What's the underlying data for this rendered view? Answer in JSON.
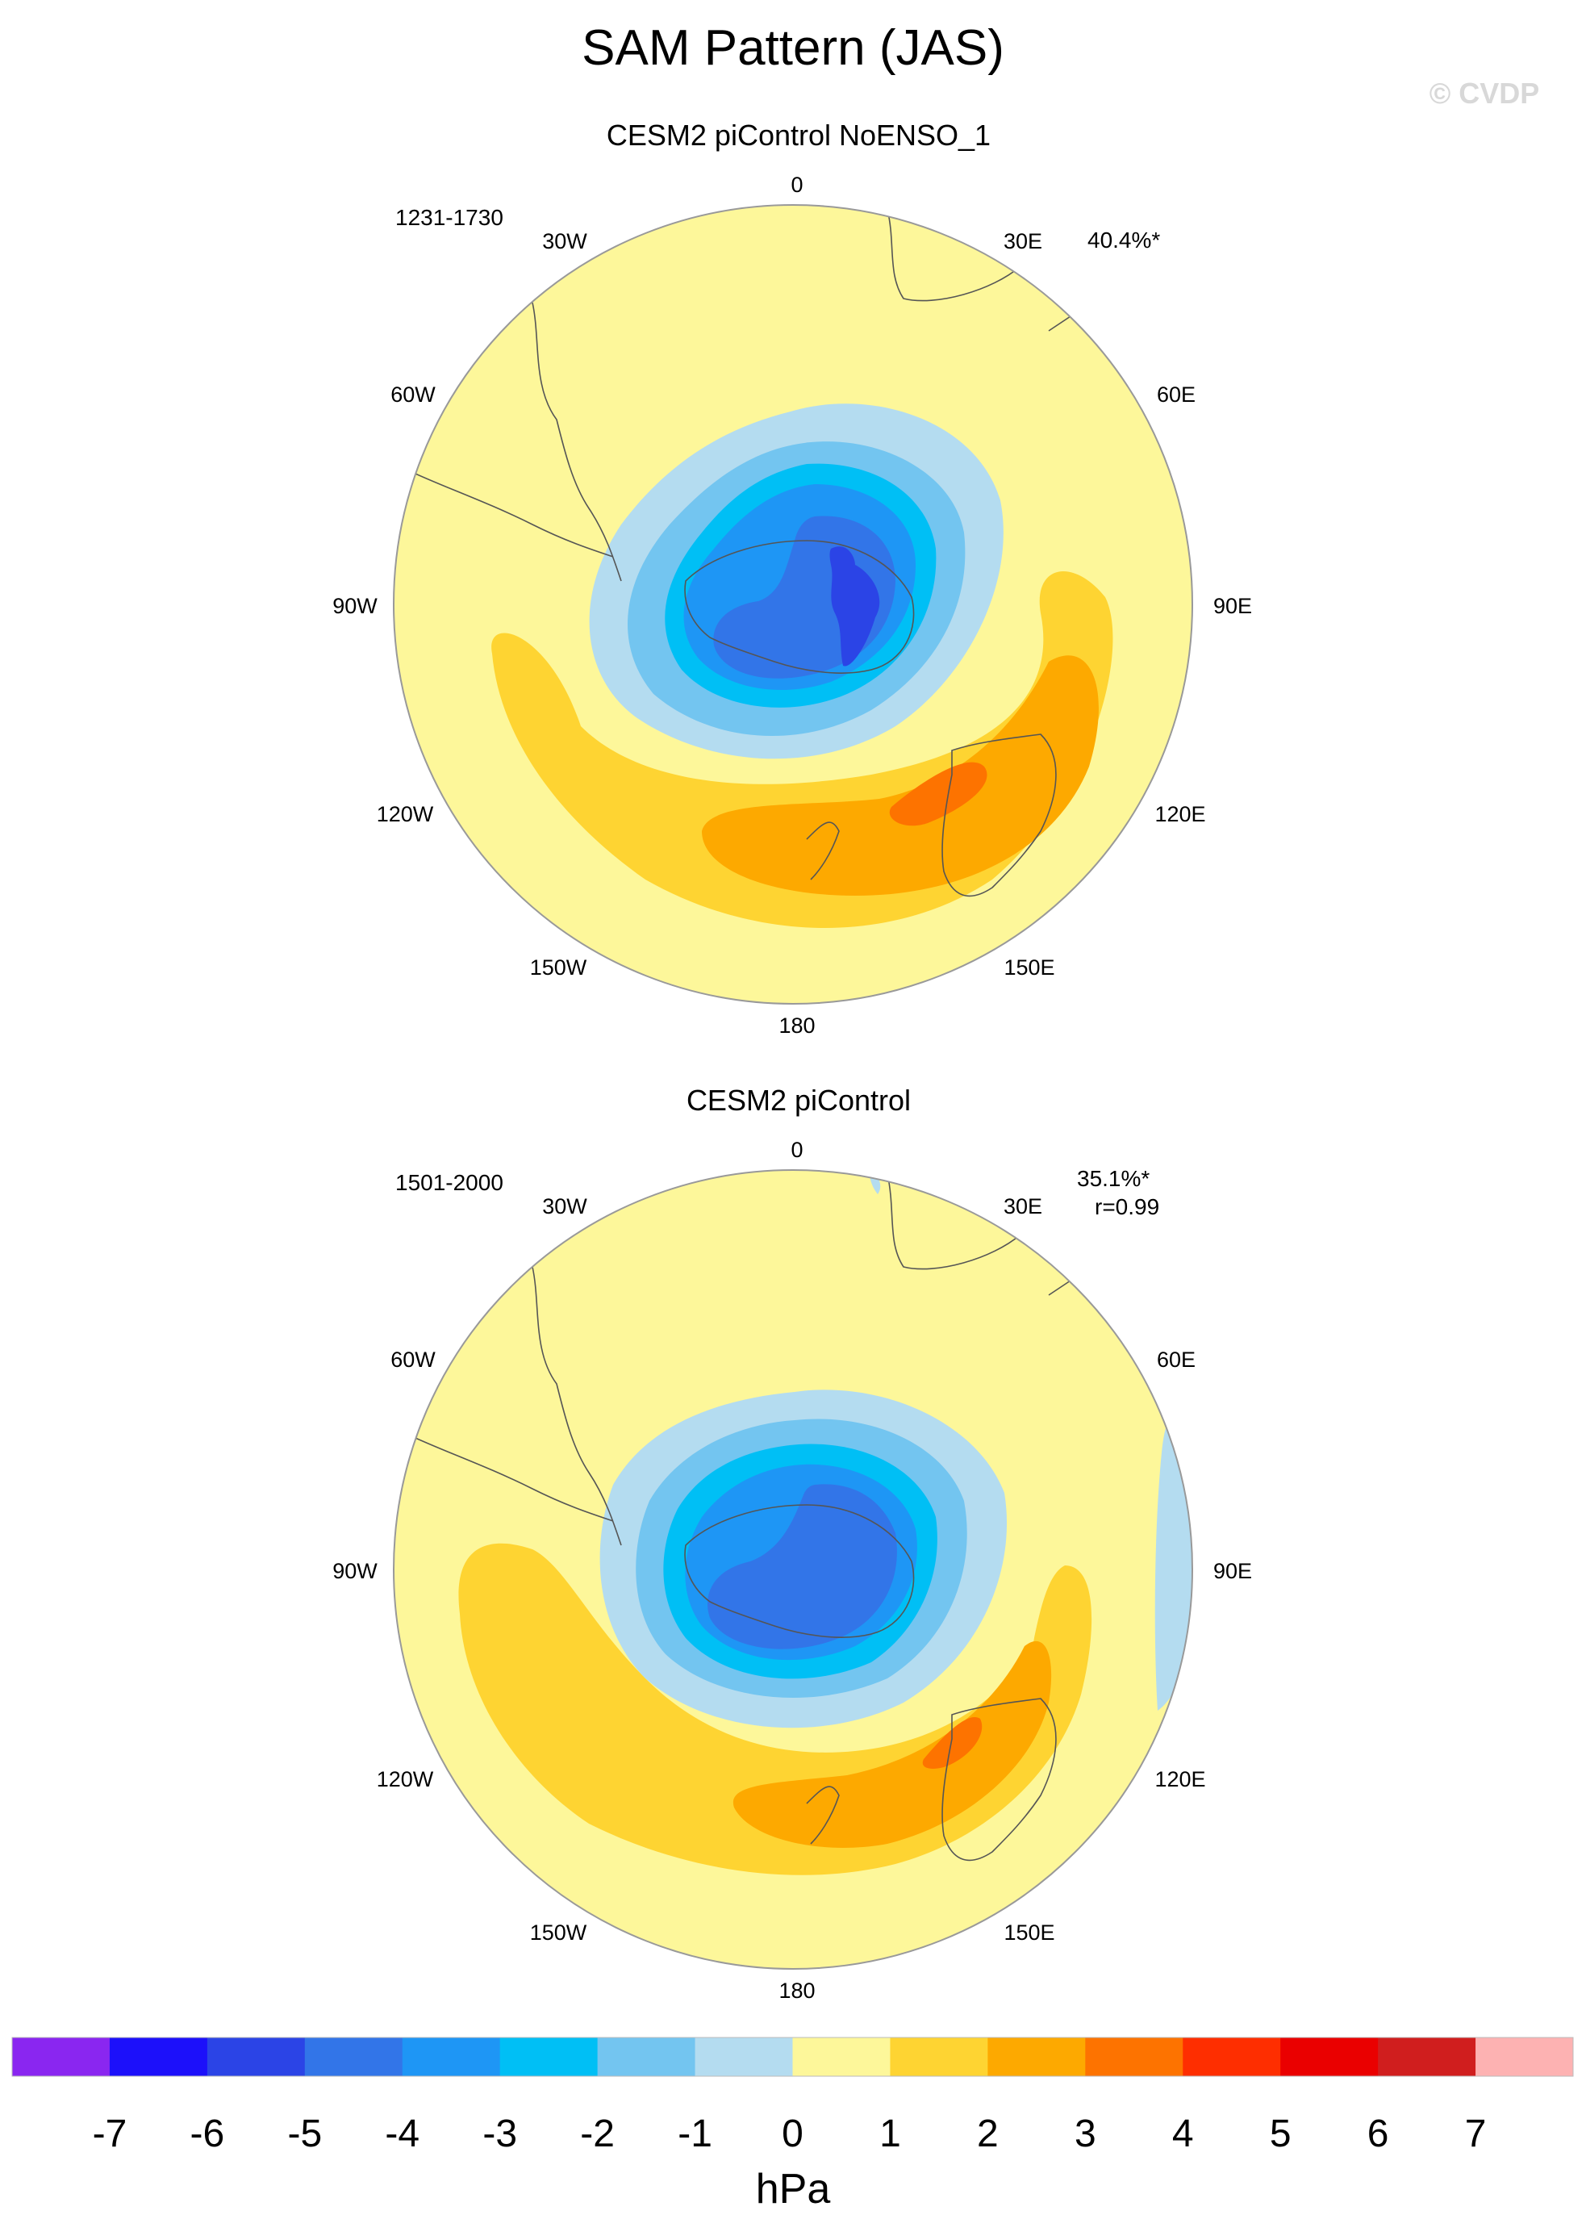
{
  "figure": {
    "title": "SAM Pattern (JAS)",
    "watermark": "© CVDP"
  },
  "maps": [
    {
      "name": "map-top",
      "subtitle": "CESM2 piControl NoENSO_1",
      "years": "1231-1730",
      "variance": "40.4%*",
      "correlation": ""
    },
    {
      "name": "map-bottom",
      "subtitle": "CESM2 piControl",
      "years": "1501-2000",
      "variance": "35.1%*",
      "correlation": "r=0.99"
    }
  ],
  "longitude_labels": [
    "0",
    "30E",
    "60E",
    "90E",
    "120E",
    "150E",
    "180",
    "150W",
    "120W",
    "90W",
    "60W",
    "30W"
  ],
  "colorbar": {
    "unit": "hPa",
    "ticks": [
      "-7",
      "-6",
      "-5",
      "-4",
      "-3",
      "-2",
      "-1",
      "0",
      "1",
      "2",
      "3",
      "4",
      "5",
      "6",
      "7"
    ],
    "colors": [
      "#8a26f0",
      "#1c10fa",
      "#2b44e6",
      "#3275e8",
      "#1e96f5",
      "#00bff5",
      "#73c5f0",
      "#b4dcf0",
      "#fdf79a",
      "#fed432",
      "#fda900",
      "#fd7300",
      "#fe2e00",
      "#ea0000",
      "#d01e1e",
      "#fdb2b2"
    ]
  }
}
